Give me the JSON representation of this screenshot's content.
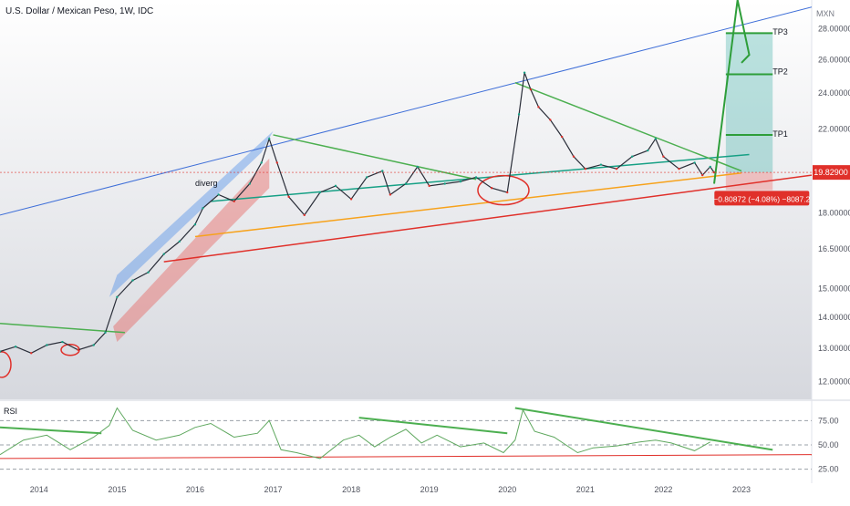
{
  "header": {
    "title": "U.S. Dollar / Mexican Peso, 1W, IDC",
    "currency": "MXN"
  },
  "chart_data": {
    "type": "line",
    "title": "U.S. Dollar / Mexican Peso, 1W, IDC",
    "y_unit": "MXN",
    "price_panel": {
      "y_scale": "log",
      "ylim": [
        11.5,
        30.0
      ],
      "y_ticks": [
        "12.00000",
        "13.00000",
        "14.00000",
        "15.00000",
        "16.50000",
        "18.00000",
        "20.00000",
        "22.00000",
        "24.00000",
        "26.00000",
        "28.00000"
      ],
      "x_ticks": [
        "2014",
        "2015",
        "2016",
        "2017",
        "2018",
        "2019",
        "2020",
        "2021",
        "2022",
        "2023"
      ],
      "x_range_years": [
        2013.5,
        2023.9
      ],
      "series": [
        {
          "name": "",
          "color": "#2a2e39",
          "x": [
            2013.5,
            2013.7,
            2013.9,
            2014.1,
            2014.3,
            2014.5,
            2014.7,
            2014.85,
            2015.0,
            2015.2,
            2015.4,
            2015.6,
            2015.8,
            2016.0,
            2016.1,
            2016.3,
            2016.5,
            2016.7,
            2016.85,
            2016.95,
            2017.05,
            2017.2,
            2017.4,
            2017.6,
            2017.8,
            2018.0,
            2018.2,
            2018.4,
            2018.5,
            2018.7,
            2018.85,
            2019.0,
            2019.2,
            2019.4,
            2019.6,
            2019.8,
            2020.0,
            2020.15,
            2020.22,
            2020.3,
            2020.4,
            2020.55,
            2020.7,
            2020.85,
            2021.0,
            2021.2,
            2021.4,
            2021.6,
            2021.8,
            2021.9,
            2022.0,
            2022.2,
            2022.4,
            2022.5,
            2022.6,
            2022.65
          ],
          "y": [
            12.9,
            13.05,
            12.85,
            13.1,
            13.2,
            12.95,
            13.1,
            13.5,
            14.7,
            15.3,
            15.6,
            16.3,
            16.8,
            17.5,
            18.2,
            18.8,
            18.5,
            19.3,
            20.3,
            21.5,
            20.3,
            18.7,
            17.9,
            18.9,
            19.2,
            18.6,
            19.6,
            19.9,
            18.8,
            19.3,
            20.1,
            19.2,
            19.3,
            19.4,
            19.6,
            19.1,
            18.9,
            22.8,
            25.2,
            24.2,
            23.2,
            22.5,
            21.6,
            20.6,
            20.0,
            20.2,
            20.0,
            20.6,
            20.9,
            21.5,
            20.6,
            20.0,
            20.3,
            19.7,
            20.1,
            19.83
          ]
        }
      ],
      "annotations": [
        {
          "text": "diverg",
          "x": 2016.0,
          "y": 19.2
        },
        {
          "text": "TP3",
          "x": 2023.4,
          "y": 27.6
        },
        {
          "text": "TP2",
          "x": 2023.4,
          "y": 25.1
        },
        {
          "text": "TP1",
          "x": 2023.4,
          "y": 21.6
        }
      ],
      "last_price": {
        "value": 19.829,
        "label": "19.82900"
      },
      "measure_label": "−0.80872 (−4.08%) −8087.2"
    },
    "rsi_panel": {
      "label": "RSI",
      "ylim": [
        20,
        95
      ],
      "y_ticks": [
        "75.00",
        "50.00",
        "25.00"
      ],
      "series": [
        {
          "name": "",
          "color": "#5fa85f",
          "x": [
            2013.5,
            2013.8,
            2014.1,
            2014.4,
            2014.7,
            2014.9,
            2015.0,
            2015.2,
            2015.5,
            2015.8,
            2016.0,
            2016.2,
            2016.5,
            2016.8,
            2016.95,
            2017.1,
            2017.3,
            2017.6,
            2017.9,
            2018.1,
            2018.3,
            2018.5,
            2018.7,
            2018.9,
            2019.1,
            2019.4,
            2019.7,
            2019.95,
            2020.1,
            2020.2,
            2020.35,
            2020.6,
            2020.9,
            2021.1,
            2021.4,
            2021.7,
            2021.9,
            2022.1,
            2022.4,
            2022.6
          ],
          "y": [
            40,
            55,
            60,
            45,
            58,
            70,
            88,
            65,
            55,
            60,
            68,
            72,
            58,
            62,
            75,
            45,
            42,
            36,
            55,
            60,
            48,
            58,
            66,
            52,
            60,
            48,
            52,
            42,
            55,
            86,
            64,
            58,
            42,
            47,
            49,
            53,
            55,
            52,
            44,
            53
          ]
        }
      ]
    }
  }
}
